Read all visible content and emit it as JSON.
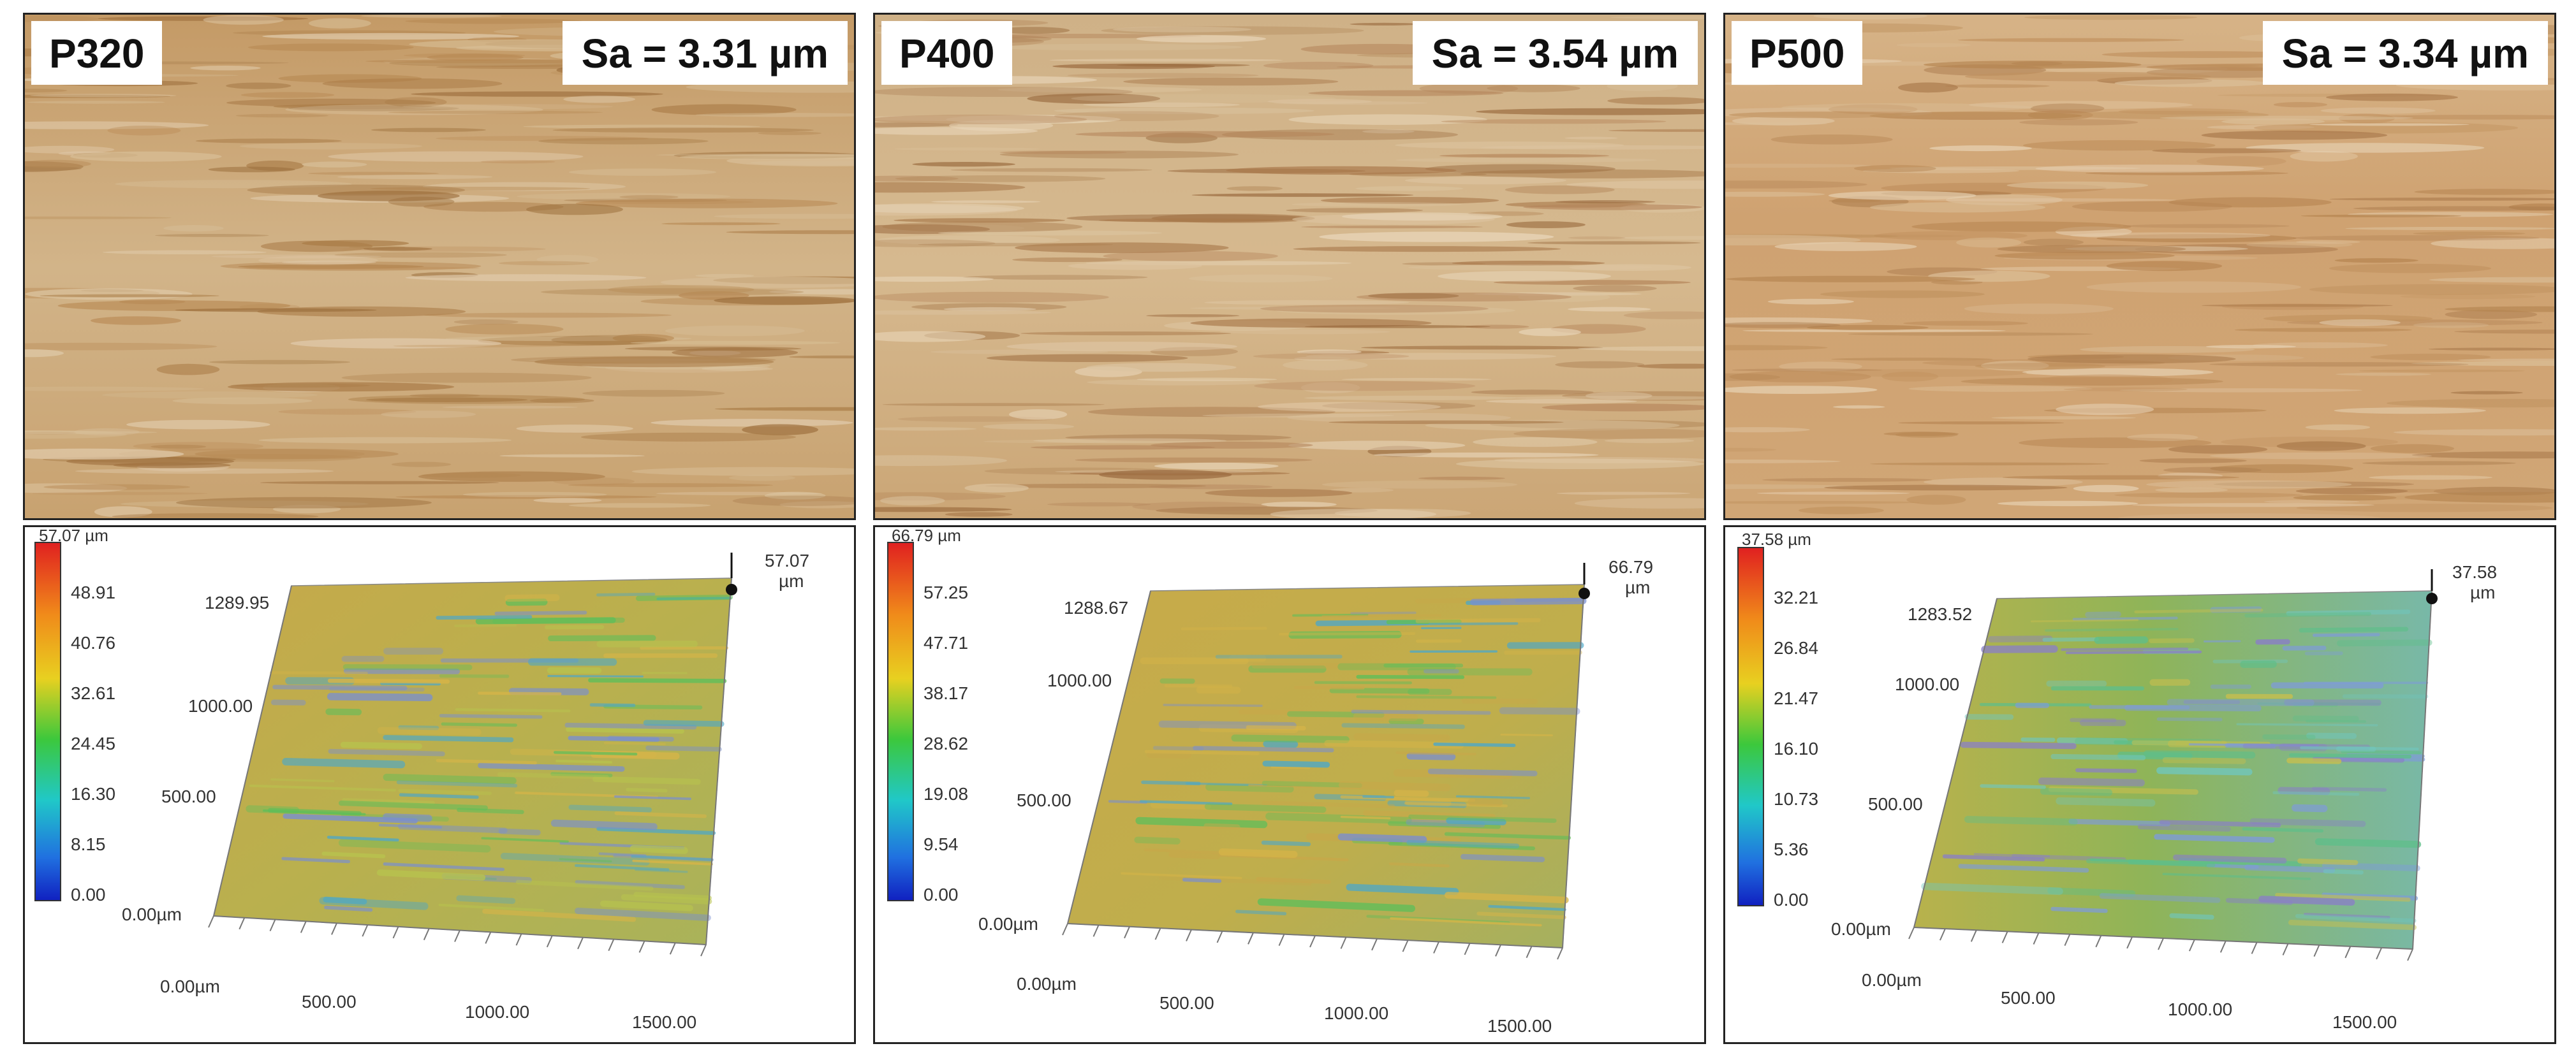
{
  "panels": [
    {
      "label": "P320",
      "sa": "Sa = 3.31 µm",
      "colorbar": [
        "57.07 µm",
        "48.91",
        "40.76",
        "32.61",
        "24.45",
        "16.30",
        "8.15",
        "0.00"
      ],
      "peak_value": "57.07",
      "peak_unit": "µm",
      "y_top": "1289.95",
      "y_ticks": [
        "1000.00",
        "500.00",
        "0.00µm"
      ],
      "x_ticks": [
        "0.00µm",
        "500.00",
        "1000.00",
        "1500.00"
      ],
      "photo_tone": "#c9a473",
      "surface_tone": "#c9b04a"
    },
    {
      "label": "P400",
      "sa": "Sa = 3.54 µm",
      "colorbar": [
        "66.79 µm",
        "57.25",
        "47.71",
        "38.17",
        "28.62",
        "19.08",
        "9.54",
        "0.00"
      ],
      "peak_value": "66.79",
      "peak_unit": "µm",
      "y_top": "1288.67",
      "y_ticks": [
        "1000.00",
        "500.00",
        "0.00µm"
      ],
      "x_ticks": [
        "0.00µm",
        "500.00",
        "1000.00",
        "1500.00"
      ],
      "photo_tone": "#cfae80",
      "surface_tone": "#c8b24e"
    },
    {
      "label": "P500",
      "sa": "Sa = 3.34 µm",
      "colorbar": [
        "37.58 µm",
        "32.21",
        "26.84",
        "21.47",
        "16.10",
        "10.73",
        "5.36",
        "0.00"
      ],
      "peak_value": "37.58",
      "peak_unit": "µm",
      "y_top": "1283.52",
      "y_ticks": [
        "1000.00",
        "500.00",
        "0.00µm"
      ],
      "x_ticks": [
        "0.00µm",
        "500.00",
        "1000.00",
        "1500.00"
      ],
      "photo_tone": "#cfa572",
      "surface_tone": "#8fb25a"
    }
  ]
}
